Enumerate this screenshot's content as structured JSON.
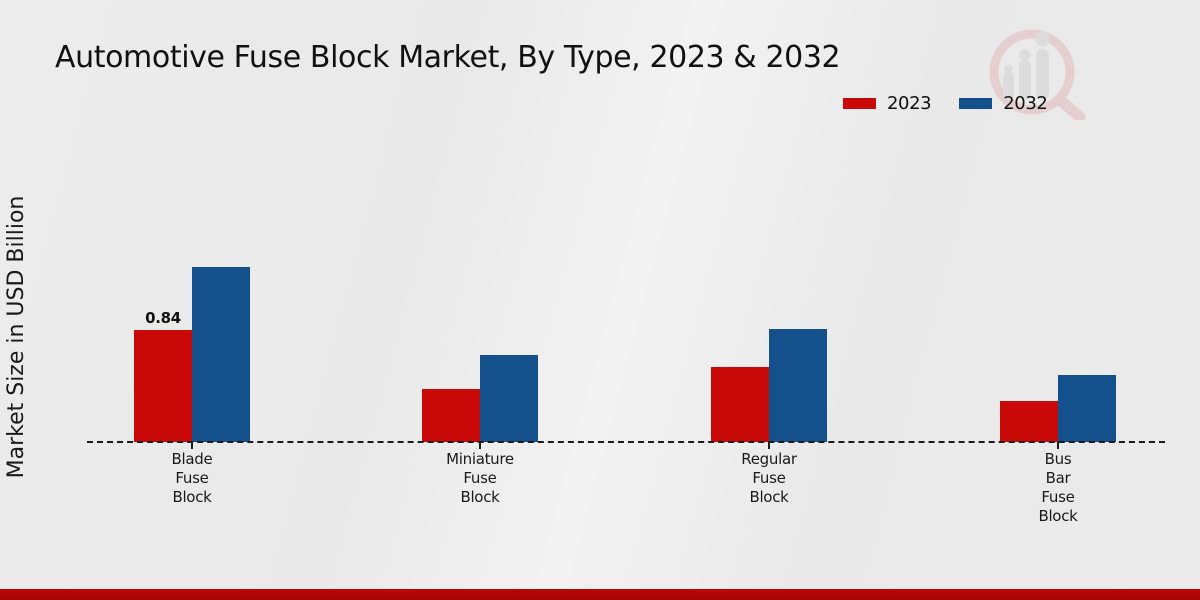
{
  "header": {
    "title": "Automotive Fuse Block Market, By Type, 2023 & 2032"
  },
  "icons": {
    "watermark": "bar-chart-magnifier-logo"
  },
  "colors": {
    "series_2023": "#c90808",
    "series_2032": "#14518c",
    "footer_strip": "#b20505",
    "baseline": "#1b1b1b",
    "watermark_ring": "#e2b8ba",
    "watermark_bars": "#d2d2d2",
    "text": "#111111"
  },
  "legend": {
    "items": [
      {
        "label": "2023",
        "color": "#c90808"
      },
      {
        "label": "2032",
        "color": "#14518c"
      }
    ]
  },
  "chart_data": {
    "type": "bar",
    "title": "Automotive Fuse Block Market, By Type, 2023 & 2032",
    "ylabel": "Market Size in USD Billion",
    "xlabel": "",
    "categories": [
      "Blade Fuse Block",
      "Miniature Fuse Block",
      "Regular Fuse Block",
      "Bus Bar Fuse Block"
    ],
    "category_label_lines": [
      [
        "Blade",
        "Fuse",
        "Block"
      ],
      [
        "Miniature",
        "Fuse",
        "Block"
      ],
      [
        "Regular",
        "Fuse",
        "Block"
      ],
      [
        "Bus",
        "Bar",
        "Fuse",
        "Block"
      ]
    ],
    "series": [
      {
        "name": "2023",
        "color": "#c90808",
        "values": [
          0.84,
          0.4,
          0.56,
          0.31
        ]
      },
      {
        "name": "2032",
        "color": "#14518c",
        "values": [
          1.31,
          0.65,
          0.85,
          0.5
        ]
      }
    ],
    "bar_labels": [
      [
        "0.84",
        null,
        null,
        null
      ],
      [
        null,
        null,
        null,
        null
      ]
    ],
    "ylim": [
      0,
      1.5
    ],
    "grid": false,
    "legend_position": "upper-right",
    "baseline_style": "dashed"
  }
}
